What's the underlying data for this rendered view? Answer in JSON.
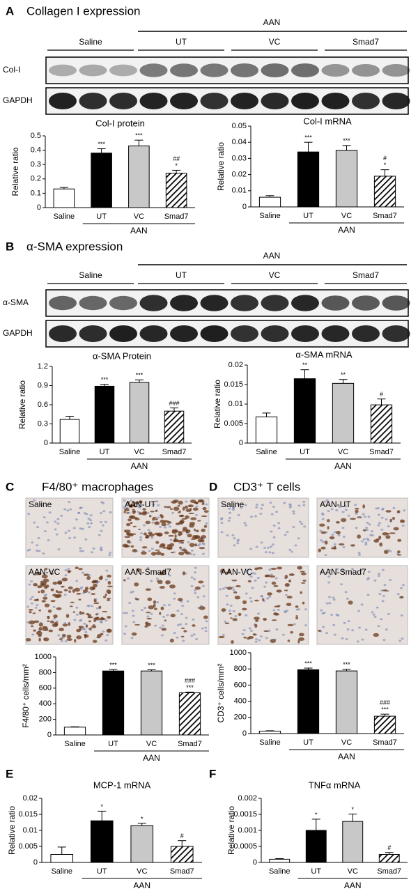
{
  "figure": {
    "panel_a": {
      "letter": "A",
      "heading": "Collagen I expression",
      "blot": {
        "group_header": "AAN",
        "groups": [
          "Saline",
          "UT",
          "VC",
          "Smad7"
        ],
        "rows": [
          "Col-I",
          "GAPDH"
        ]
      }
    },
    "panel_b": {
      "letter": "B",
      "heading": "α-SMA expression",
      "blot": {
        "group_header": "AAN",
        "groups": [
          "Saline",
          "UT",
          "VC",
          "Smad7"
        ],
        "rows": [
          "α-SMA",
          "GAPDH"
        ]
      }
    },
    "panel_c": {
      "letter": "C",
      "heading": "F4/80⁺ macrophages",
      "images": [
        "Saline",
        "AAN-UT",
        "AAN-VC",
        "AAN-Smad7"
      ]
    },
    "panel_d": {
      "letter": "D",
      "heading": "CD3⁺ T cells",
      "images": [
        "Saline",
        "AAN-UT",
        "AAN-VC",
        "AAN-Smad7"
      ]
    },
    "panel_e": {
      "letter": "E"
    },
    "panel_f": {
      "letter": "F"
    }
  },
  "chart_data": [
    {
      "type": "bar",
      "title": "Col-I protein",
      "ylabel": "Relative ratio",
      "categories": [
        "Saline",
        "UT",
        "VC",
        "Smad7"
      ],
      "group_label": "AAN",
      "values": [
        0.13,
        0.38,
        0.43,
        0.24
      ],
      "errors": [
        0.01,
        0.03,
        0.04,
        0.02
      ],
      "significance": [
        [],
        [
          "***"
        ],
        [
          "***"
        ],
        [
          "##",
          "*"
        ]
      ],
      "colors": [
        "#ffffff",
        "#000000",
        "#c8c8c8",
        "#ffffff"
      ],
      "hatched": [
        false,
        false,
        false,
        true
      ],
      "ylim": [
        0,
        0.5
      ],
      "yticks": [
        0,
        0.1,
        0.2,
        0.3,
        0.4,
        0.5
      ]
    },
    {
      "type": "bar",
      "title": "Col-I mRNA",
      "ylabel": "Relative ratio",
      "categories": [
        "Saline",
        "UT",
        "VC",
        "Smad7"
      ],
      "group_label": "AAN",
      "values": [
        0.006,
        0.034,
        0.035,
        0.019
      ],
      "errors": [
        0.001,
        0.006,
        0.003,
        0.004
      ],
      "significance": [
        [],
        [
          "***"
        ],
        [
          "***"
        ],
        [
          "#",
          "*"
        ]
      ],
      "colors": [
        "#ffffff",
        "#000000",
        "#c8c8c8",
        "#ffffff"
      ],
      "hatched": [
        false,
        false,
        false,
        true
      ],
      "ylim": [
        0,
        0.05
      ],
      "yticks": [
        0,
        0.01,
        0.02,
        0.03,
        0.04,
        0.05
      ]
    },
    {
      "type": "bar",
      "title": "α-SMA Protein",
      "ylabel": "Relative ratio",
      "categories": [
        "Saline",
        "UT",
        "VC",
        "Smad7"
      ],
      "group_label": "AAN",
      "values": [
        0.37,
        0.89,
        0.95,
        0.5
      ],
      "errors": [
        0.05,
        0.03,
        0.04,
        0.05
      ],
      "significance": [
        [],
        [
          "***"
        ],
        [
          "***"
        ],
        [
          "###"
        ]
      ],
      "colors": [
        "#ffffff",
        "#000000",
        "#c8c8c8",
        "#ffffff"
      ],
      "hatched": [
        false,
        false,
        false,
        true
      ],
      "ylim": [
        0,
        1.2
      ],
      "yticks": [
        0,
        0.3,
        0.6,
        0.9,
        1.2
      ]
    },
    {
      "type": "bar",
      "title": "α-SMA mRNA",
      "ylabel": "Relative ratio",
      "categories": [
        "Saline",
        "UT",
        "VC",
        "Smad7"
      ],
      "group_label": "AAN",
      "values": [
        0.0067,
        0.0165,
        0.0153,
        0.0098
      ],
      "errors": [
        0.001,
        0.0023,
        0.001,
        0.0015
      ],
      "significance": [
        [],
        [
          "**"
        ],
        [
          "**"
        ],
        [
          "#"
        ]
      ],
      "colors": [
        "#ffffff",
        "#000000",
        "#c8c8c8",
        "#ffffff"
      ],
      "hatched": [
        false,
        false,
        false,
        true
      ],
      "ylim": [
        0,
        0.02
      ],
      "yticks": [
        0,
        0.005,
        0.01,
        0.015,
        0.02
      ]
    },
    {
      "type": "bar",
      "ylabel": "F4/80⁺ cells/mm²",
      "categories": [
        "Saline",
        "UT",
        "VC",
        "Smad7"
      ],
      "group_label": "AAN",
      "values": [
        100,
        820,
        820,
        540
      ],
      "errors": [
        5,
        20,
        15,
        10
      ],
      "significance": [
        [],
        [
          "***"
        ],
        [
          "***"
        ],
        [
          "###",
          "***"
        ]
      ],
      "colors": [
        "#ffffff",
        "#000000",
        "#c8c8c8",
        "#ffffff"
      ],
      "hatched": [
        false,
        false,
        false,
        true
      ],
      "ylim": [
        0,
        1000
      ],
      "yticks": [
        0,
        200,
        400,
        600,
        800,
        1000
      ]
    },
    {
      "type": "bar",
      "ylabel": "CD3⁺ cells/mm²",
      "categories": [
        "Saline",
        "UT",
        "VC",
        "Smad7"
      ],
      "group_label": "AAN",
      "values": [
        30,
        790,
        775,
        215
      ],
      "errors": [
        5,
        20,
        20,
        25
      ],
      "significance": [
        [],
        [
          "***"
        ],
        [
          "***"
        ],
        [
          "###",
          "***"
        ]
      ],
      "colors": [
        "#ffffff",
        "#000000",
        "#c8c8c8",
        "#ffffff"
      ],
      "hatched": [
        false,
        false,
        false,
        true
      ],
      "ylim": [
        0,
        1000
      ],
      "yticks": [
        0,
        200,
        400,
        600,
        800,
        1000
      ]
    },
    {
      "type": "bar",
      "title": "MCP-1 mRNA",
      "ylabel": "Relative ratio",
      "categories": [
        "Saline",
        "UT",
        "VC",
        "Smad7"
      ],
      "group_label": "AAN",
      "values": [
        0.0025,
        0.013,
        0.0115,
        0.005
      ],
      "errors": [
        0.0023,
        0.003,
        0.0007,
        0.0018
      ],
      "significance": [
        [],
        [
          "*"
        ],
        [
          "*"
        ],
        [
          "#"
        ]
      ],
      "colors": [
        "#ffffff",
        "#000000",
        "#c8c8c8",
        "#ffffff"
      ],
      "hatched": [
        false,
        false,
        false,
        true
      ],
      "ylim": [
        0,
        0.02
      ],
      "yticks": [
        0,
        0.005,
        0.01,
        0.015,
        0.02
      ]
    },
    {
      "type": "bar",
      "title": "TNFα mRNA",
      "ylabel": "Relative ratio",
      "categories": [
        "Saline",
        "UT",
        "VC",
        "Smad7"
      ],
      "group_label": "AAN",
      "values": [
        0.0001,
        0.001,
        0.00128,
        0.00025
      ],
      "errors": [
        2e-05,
        0.00035,
        0.00023,
        6e-05
      ],
      "significance": [
        [],
        [
          "*"
        ],
        [
          "*"
        ],
        [
          "#"
        ]
      ],
      "colors": [
        "#ffffff",
        "#000000",
        "#c8c8c8",
        "#ffffff"
      ],
      "hatched": [
        false,
        false,
        false,
        true
      ],
      "ylim": [
        0,
        0.002
      ],
      "yticks": [
        0,
        0.0005,
        0.001,
        0.0015,
        0.002
      ]
    }
  ]
}
